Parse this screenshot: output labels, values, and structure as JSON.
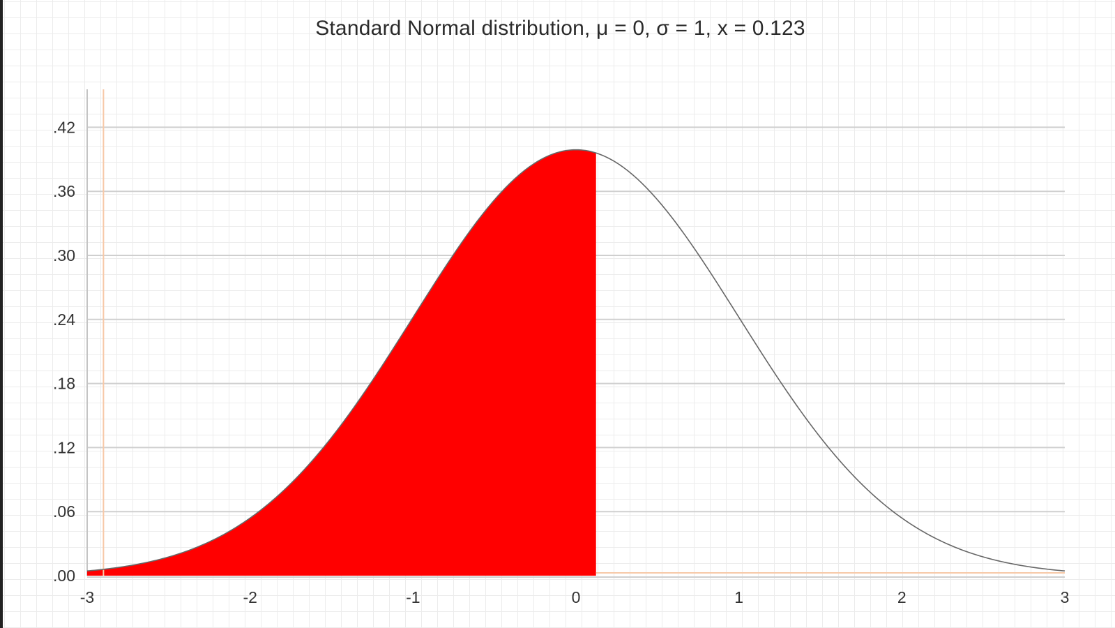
{
  "chart_data": {
    "type": "area",
    "title": "Standard Normal distribution, μ = 0, σ = 1, x = 0.123",
    "xlabel": "",
    "ylabel": "",
    "distribution": "normal",
    "mu": 0,
    "sigma": 1,
    "x_value": 0.123,
    "xlim": [
      -3,
      3
    ],
    "ylim": [
      0,
      0.45
    ],
    "x_ticks": [
      "-3",
      "-2",
      "-1",
      "0",
      "1",
      "2",
      "3"
    ],
    "y_ticks": [
      ".00",
      ".06",
      ".12",
      ".18",
      ".24",
      ".30",
      ".36",
      ".42"
    ],
    "shaded_region": [
      -3,
      0.123
    ],
    "grid": true,
    "colors": {
      "shade": "#ff0000",
      "curve": "#666666",
      "gridline": "#cfcfcf",
      "marker": "#f7c9a8"
    }
  }
}
